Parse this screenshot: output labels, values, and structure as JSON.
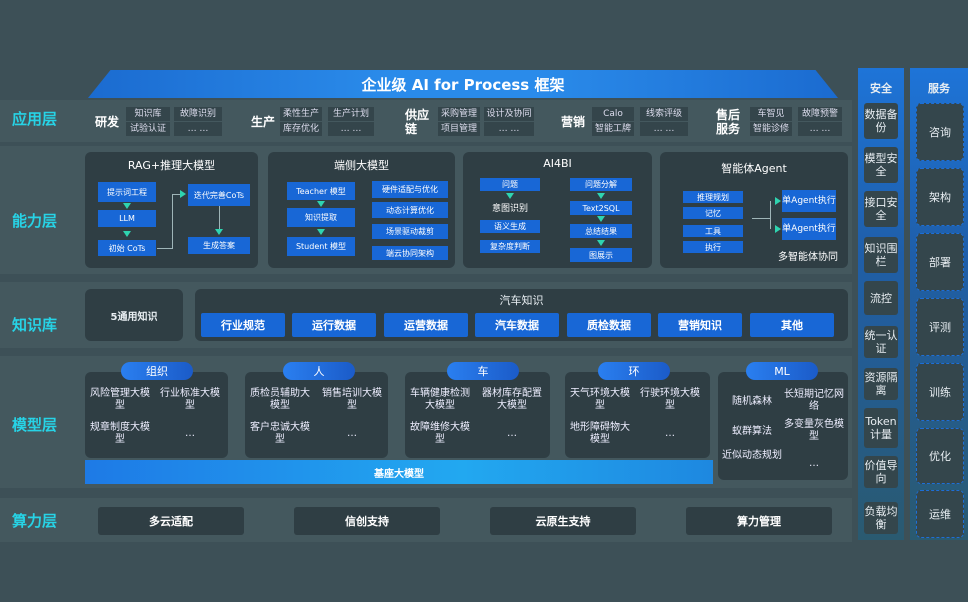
{
  "title": "企业级 AI for Process 框架",
  "layers": {
    "app": "应用层",
    "capability": "能力层",
    "knowledge": "知识库",
    "model": "模型层",
    "compute": "算力层"
  },
  "app": {
    "rd": {
      "name": "研发",
      "items": [
        "知识库",
        "故障识别",
        "试验认证",
        "… …"
      ]
    },
    "prod": {
      "name": "生产",
      "items": [
        "柔性生产",
        "生产计划",
        "库存优化",
        "… …"
      ]
    },
    "scm": {
      "name": "供应链",
      "items": [
        "采购管理",
        "设计及协同",
        "项目管理",
        "… …"
      ]
    },
    "mkt": {
      "name": "营销",
      "items": [
        "Calo",
        "线索评级",
        "智能工牌",
        "… …"
      ]
    },
    "svc": {
      "name": "售后服务",
      "items": [
        "车智见",
        "故障预警",
        "智能诊修",
        "… …"
      ]
    }
  },
  "capability": {
    "rag": {
      "title": "RAG+推理大模型",
      "items": [
        "提示词工程",
        "LLM",
        "初始 CoTs",
        "迭代完善CoTs",
        "生成答案"
      ]
    },
    "edge": {
      "title": "端侧大模型",
      "items": [
        "Teacher 模型",
        "知识提取",
        "Student 模型",
        "硬件适配与优化",
        "动态计算优化",
        "场景驱动裁剪",
        "端云协同架构"
      ]
    },
    "ai4bi": {
      "title": "AI4BI",
      "items": [
        "问题",
        "意图识别",
        "语义生成",
        "复杂度判断",
        "问题分解",
        "Text2SQL",
        "总结结果",
        "图展示"
      ]
    },
    "agent": {
      "title": "智能体Agent",
      "items": [
        "推理规划",
        "记忆",
        "工具",
        "执行",
        "单Agent执行",
        "单Agent执行",
        "多智能体协同"
      ]
    }
  },
  "knowledge": {
    "general": "5通用知识",
    "auto_title": "汽车知识",
    "auto": [
      "行业规范",
      "运行数据",
      "运营数据",
      "汽车数据",
      "质检数据",
      "营销知识",
      "其他"
    ]
  },
  "model": {
    "groups": [
      {
        "name": "组织",
        "items": [
          "风险管理大模型",
          "行业标准大模型",
          "规章制度大模型",
          "…"
        ]
      },
      {
        "name": "人",
        "items": [
          "质检员辅助大模型",
          "销售培训大模型",
          "客户忠诚大模型",
          "…"
        ]
      },
      {
        "name": "车",
        "items": [
          "车辆健康检测大模型",
          "器材库存配置大模型",
          "故障维修大模型",
          "…"
        ]
      },
      {
        "name": "环",
        "items": [
          "天气环境大模型",
          "行驶环境大模型",
          "地形障碍物大模型",
          "…"
        ]
      },
      {
        "name": "ML",
        "items": [
          "随机森林",
          "长短期记忆网络",
          "蚁群算法",
          "多变量灰色模型",
          "近似动态规划",
          "…"
        ]
      }
    ],
    "base": "基座大模型"
  },
  "compute": [
    "多云适配",
    "信创支持",
    "云原生支持",
    "算力管理"
  ],
  "security": {
    "title": "安全",
    "items": [
      "数据备份",
      "模型安全",
      "接口安全",
      "知识围栏",
      "流控",
      "统一认证",
      "资源隔离",
      "Token计量",
      "价值导向",
      "负载均衡"
    ]
  },
  "service": {
    "title": "服务",
    "items": [
      "咨询",
      "架构",
      "部署",
      "评测",
      "训练",
      "优化",
      "运维"
    ]
  }
}
